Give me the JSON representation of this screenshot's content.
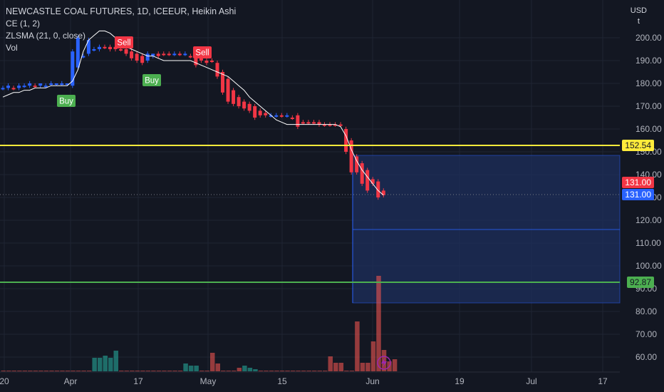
{
  "legend": {
    "symbol": "NEWCASTLE COAL FUTURES, 1D, ICEEUR, Heikin Ashi",
    "indicators": [
      "CE (1, 2)",
      "ZLSMA (21, 0, close)",
      "Vol"
    ]
  },
  "axis": {
    "currency": "USD",
    "unit": "t",
    "y_ticks": [
      "200.00",
      "190.00",
      "180.00",
      "170.00",
      "160.00",
      "150.00",
      "140.00",
      "130.00",
      "120.00",
      "110.00",
      "100.00",
      "90.00",
      "80.00",
      "70.00",
      "60.00"
    ],
    "x_ticks": [
      "20",
      "Apr",
      "17",
      "May",
      "15",
      "Jun",
      "19",
      "Jul",
      "17"
    ]
  },
  "price_labels": {
    "yellow_level": "152.54",
    "last_price": "131.00",
    "close_price": "131.00",
    "green_level": "92.87"
  },
  "colors": {
    "background": "#131722",
    "bull": "#2962ff",
    "bear": "#f23645",
    "volume_bull": "#26a69a",
    "volume_bear": "#ef5350",
    "yellow_line": "#ffeb3b",
    "green_line": "#4caf50",
    "zlsma": "#ffffff",
    "projection_box": "#1e2f5c"
  },
  "signals": [
    {
      "label": "Buy",
      "type": "buy"
    },
    {
      "label": "Sell",
      "type": "sell"
    },
    {
      "label": "Buy",
      "type": "buy"
    },
    {
      "label": "Sell",
      "type": "sell"
    }
  ],
  "chart_data": {
    "type": "candlestick",
    "title": "NEWCASTLE COAL FUTURES, 1D, ICEEUR, Heikin Ashi",
    "ylabel": "USD / t",
    "ylim": [
      53,
      209
    ],
    "grid": true,
    "horizontal_levels": [
      152.54,
      92.87
    ],
    "last_price": 131.0,
    "candles": [
      {
        "o": 178,
        "c": 178,
        "h": 179,
        "l": 177,
        "bull": true
      },
      {
        "o": 178,
        "c": 179,
        "h": 180,
        "l": 177,
        "bull": true
      },
      {
        "o": 178,
        "c": 178,
        "h": 179,
        "l": 177,
        "bull": false
      },
      {
        "o": 178,
        "c": 179,
        "h": 180,
        "l": 177,
        "bull": true
      },
      {
        "o": 179,
        "c": 179,
        "h": 180,
        "l": 178,
        "bull": true
      },
      {
        "o": 179,
        "c": 180,
        "h": 181,
        "l": 178,
        "bull": true
      },
      {
        "o": 179,
        "c": 179,
        "h": 180,
        "l": 178,
        "bull": false
      },
      {
        "o": 179,
        "c": 180,
        "h": 180,
        "l": 178,
        "bull": true
      },
      {
        "o": 179,
        "c": 179,
        "h": 180,
        "l": 178,
        "bull": true
      },
      {
        "o": 180,
        "c": 180,
        "h": 181,
        "l": 179,
        "bull": true
      },
      {
        "o": 180,
        "c": 180,
        "h": 180,
        "l": 179,
        "bull": true
      },
      {
        "o": 180,
        "c": 180,
        "h": 181,
        "l": 179,
        "bull": true
      },
      {
        "o": 180,
        "c": 180,
        "h": 180,
        "l": 179,
        "bull": true
      },
      {
        "o": 179,
        "c": 194,
        "h": 195,
        "l": 178,
        "bull": true
      },
      {
        "o": 187,
        "c": 200,
        "h": 201,
        "l": 186,
        "bull": true
      },
      {
        "o": 192,
        "c": 192,
        "h": 193,
        "l": 191,
        "bull": true
      },
      {
        "o": 193,
        "c": 199,
        "h": 200,
        "l": 192,
        "bull": true
      },
      {
        "o": 195,
        "c": 195,
        "h": 196,
        "l": 194,
        "bull": true
      },
      {
        "o": 195,
        "c": 196,
        "h": 197,
        "l": 194,
        "bull": true
      },
      {
        "o": 196,
        "c": 196,
        "h": 197,
        "l": 195,
        "bull": false
      },
      {
        "o": 196,
        "c": 195,
        "h": 197,
        "l": 194,
        "bull": false
      },
      {
        "o": 196,
        "c": 195,
        "h": 197,
        "l": 194,
        "bull": false
      },
      {
        "o": 195,
        "c": 195,
        "h": 196,
        "l": 194,
        "bull": false
      },
      {
        "o": 195,
        "c": 193,
        "h": 196,
        "l": 192,
        "bull": false
      },
      {
        "o": 194,
        "c": 191,
        "h": 195,
        "l": 190,
        "bull": false
      },
      {
        "o": 193,
        "c": 190,
        "h": 194,
        "l": 189,
        "bull": false
      },
      {
        "o": 192,
        "c": 189,
        "h": 193,
        "l": 188,
        "bull": false
      },
      {
        "o": 190,
        "c": 193,
        "h": 194,
        "l": 189,
        "bull": true
      },
      {
        "o": 192,
        "c": 193,
        "h": 193,
        "l": 191,
        "bull": true
      },
      {
        "o": 193,
        "c": 192,
        "h": 194,
        "l": 191,
        "bull": false
      },
      {
        "o": 193,
        "c": 193,
        "h": 194,
        "l": 192,
        "bull": false
      },
      {
        "o": 193,
        "c": 193,
        "h": 194,
        "l": 192,
        "bull": false
      },
      {
        "o": 193,
        "c": 193,
        "h": 194,
        "l": 192,
        "bull": true
      },
      {
        "o": 193,
        "c": 193,
        "h": 194,
        "l": 192,
        "bull": false
      },
      {
        "o": 193,
        "c": 193,
        "h": 194,
        "l": 192,
        "bull": true
      },
      {
        "o": 192,
        "c": 192,
        "h": 193,
        "l": 191,
        "bull": false
      },
      {
        "o": 192,
        "c": 188,
        "h": 193,
        "l": 187,
        "bull": false
      },
      {
        "o": 191,
        "c": 190,
        "h": 192,
        "l": 189,
        "bull": false
      },
      {
        "o": 190,
        "c": 189,
        "h": 191,
        "l": 188,
        "bull": false
      },
      {
        "o": 190,
        "c": 190,
        "h": 191,
        "l": 189,
        "bull": false
      },
      {
        "o": 189,
        "c": 183,
        "h": 190,
        "l": 182,
        "bull": false
      },
      {
        "o": 185,
        "c": 176,
        "h": 186,
        "l": 175,
        "bull": false
      },
      {
        "o": 182,
        "c": 172,
        "h": 183,
        "l": 171,
        "bull": false
      },
      {
        "o": 177,
        "c": 171,
        "h": 178,
        "l": 170,
        "bull": false
      },
      {
        "o": 174,
        "c": 170,
        "h": 175,
        "l": 169,
        "bull": false
      },
      {
        "o": 172,
        "c": 169,
        "h": 173,
        "l": 168,
        "bull": false
      },
      {
        "o": 171,
        "c": 168,
        "h": 172,
        "l": 167,
        "bull": false
      },
      {
        "o": 170,
        "c": 165,
        "h": 171,
        "l": 164,
        "bull": false
      },
      {
        "o": 168,
        "c": 166,
        "h": 169,
        "l": 165,
        "bull": false
      },
      {
        "o": 167,
        "c": 166,
        "h": 168,
        "l": 165,
        "bull": false
      },
      {
        "o": 166,
        "c": 166,
        "h": 167,
        "l": 165,
        "bull": true
      },
      {
        "o": 166,
        "c": 166,
        "h": 167,
        "l": 165,
        "bull": true
      },
      {
        "o": 166,
        "c": 166,
        "h": 167,
        "l": 165,
        "bull": false
      },
      {
        "o": 166,
        "c": 166,
        "h": 167,
        "l": 165,
        "bull": true
      },
      {
        "o": 165,
        "c": 165,
        "h": 166,
        "l": 164,
        "bull": false
      },
      {
        "o": 166,
        "c": 161,
        "h": 167,
        "l": 160,
        "bull": false
      },
      {
        "o": 163,
        "c": 163,
        "h": 164,
        "l": 162,
        "bull": false
      },
      {
        "o": 163,
        "c": 163,
        "h": 164,
        "l": 162,
        "bull": false
      },
      {
        "o": 163,
        "c": 163,
        "h": 164,
        "l": 162,
        "bull": false
      },
      {
        "o": 163,
        "c": 162,
        "h": 164,
        "l": 161,
        "bull": false
      },
      {
        "o": 162,
        "c": 162,
        "h": 163,
        "l": 161,
        "bull": false
      },
      {
        "o": 162,
        "c": 162,
        "h": 163,
        "l": 161,
        "bull": false
      },
      {
        "o": 162,
        "c": 162,
        "h": 163,
        "l": 161,
        "bull": false
      },
      {
        "o": 162,
        "c": 162,
        "h": 163,
        "l": 161,
        "bull": false
      },
      {
        "o": 160,
        "c": 150,
        "h": 161,
        "l": 149,
        "bull": false
      },
      {
        "o": 155,
        "c": 141,
        "h": 156,
        "l": 140,
        "bull": false
      },
      {
        "o": 148,
        "c": 141,
        "h": 149,
        "l": 140,
        "bull": false
      },
      {
        "o": 145,
        "c": 136,
        "h": 146,
        "l": 135,
        "bull": false
      },
      {
        "o": 142,
        "c": 133,
        "h": 143,
        "l": 132,
        "bull": false
      },
      {
        "o": 138,
        "c": 136,
        "h": 139,
        "l": 135,
        "bull": false
      },
      {
        "o": 137,
        "c": 130,
        "h": 138,
        "l": 129,
        "bull": false
      },
      {
        "o": 133,
        "c": 131,
        "h": 134,
        "l": 130,
        "bull": false
      }
    ],
    "zlsma": [
      174,
      175,
      176,
      176,
      177,
      177,
      178,
      178,
      178,
      179,
      179,
      179,
      179,
      181,
      186,
      194,
      199,
      201,
      203,
      203,
      202,
      200,
      198,
      196,
      195,
      194,
      193,
      192,
      192,
      191,
      190,
      190,
      190,
      190,
      190,
      190,
      189,
      188,
      187,
      186,
      185,
      184,
      183,
      181,
      179,
      177,
      174,
      172,
      170,
      168,
      166,
      164,
      163,
      162,
      162,
      162,
      162,
      162,
      162,
      162,
      162,
      162,
      162,
      161,
      157,
      151,
      146,
      142,
      139,
      136,
      133,
      131
    ],
    "volume": [
      {
        "v": 1,
        "bull": false
      },
      {
        "v": 1,
        "bull": false
      },
      {
        "v": 1,
        "bull": false
      },
      {
        "v": 1,
        "bull": false
      },
      {
        "v": 1,
        "bull": false
      },
      {
        "v": 1,
        "bull": false
      },
      {
        "v": 1,
        "bull": false
      },
      {
        "v": 1,
        "bull": false
      },
      {
        "v": 1,
        "bull": false
      },
      {
        "v": 1,
        "bull": false
      },
      {
        "v": 1,
        "bull": false
      },
      {
        "v": 1,
        "bull": false
      },
      {
        "v": 1,
        "bull": false
      },
      {
        "v": 1,
        "bull": false
      },
      {
        "v": 1,
        "bull": false
      },
      {
        "v": 1,
        "bull": false
      },
      {
        "v": 1,
        "bull": false
      },
      {
        "v": 19,
        "bull": true
      },
      {
        "v": 19,
        "bull": true
      },
      {
        "v": 22,
        "bull": true
      },
      {
        "v": 19,
        "bull": true
      },
      {
        "v": 29,
        "bull": true
      },
      {
        "v": 1,
        "bull": false
      },
      {
        "v": 1,
        "bull": false
      },
      {
        "v": 1,
        "bull": false
      },
      {
        "v": 1,
        "bull": false
      },
      {
        "v": 1,
        "bull": false
      },
      {
        "v": 1,
        "bull": false
      },
      {
        "v": 1,
        "bull": false
      },
      {
        "v": 1,
        "bull": false
      },
      {
        "v": 1,
        "bull": false
      },
      {
        "v": 1,
        "bull": false
      },
      {
        "v": 1,
        "bull": false
      },
      {
        "v": 1,
        "bull": false
      },
      {
        "v": 11,
        "bull": true
      },
      {
        "v": 8,
        "bull": true
      },
      {
        "v": 8,
        "bull": true
      },
      {
        "v": 1,
        "bull": false
      },
      {
        "v": 1,
        "bull": false
      },
      {
        "v": 26,
        "bull": false
      },
      {
        "v": 11,
        "bull": false
      },
      {
        "v": 1,
        "bull": false
      },
      {
        "v": 1,
        "bull": false
      },
      {
        "v": 1,
        "bull": false
      },
      {
        "v": 5,
        "bull": false
      },
      {
        "v": 8,
        "bull": true
      },
      {
        "v": 5,
        "bull": true
      },
      {
        "v": 3,
        "bull": true
      },
      {
        "v": 1,
        "bull": false
      },
      {
        "v": 1,
        "bull": false
      },
      {
        "v": 1,
        "bull": false
      },
      {
        "v": 1,
        "bull": false
      },
      {
        "v": 1,
        "bull": false
      },
      {
        "v": 1,
        "bull": false
      },
      {
        "v": 1,
        "bull": false
      },
      {
        "v": 1,
        "bull": false
      },
      {
        "v": 1,
        "bull": false
      },
      {
        "v": 1,
        "bull": false
      },
      {
        "v": 1,
        "bull": false
      },
      {
        "v": 1,
        "bull": false
      },
      {
        "v": 1,
        "bull": false
      },
      {
        "v": 21,
        "bull": false
      },
      {
        "v": 12,
        "bull": false
      },
      {
        "v": 12,
        "bull": false
      },
      {
        "v": 1,
        "bull": false
      },
      {
        "v": 1,
        "bull": false
      },
      {
        "v": 70,
        "bull": false
      },
      {
        "v": 12,
        "bull": false
      },
      {
        "v": 12,
        "bull": false
      },
      {
        "v": 42,
        "bull": false
      },
      {
        "v": 134,
        "bull": false
      },
      {
        "v": 30,
        "bull": false
      },
      {
        "v": 14,
        "bull": false
      },
      {
        "v": 17,
        "bull": false
      }
    ]
  }
}
